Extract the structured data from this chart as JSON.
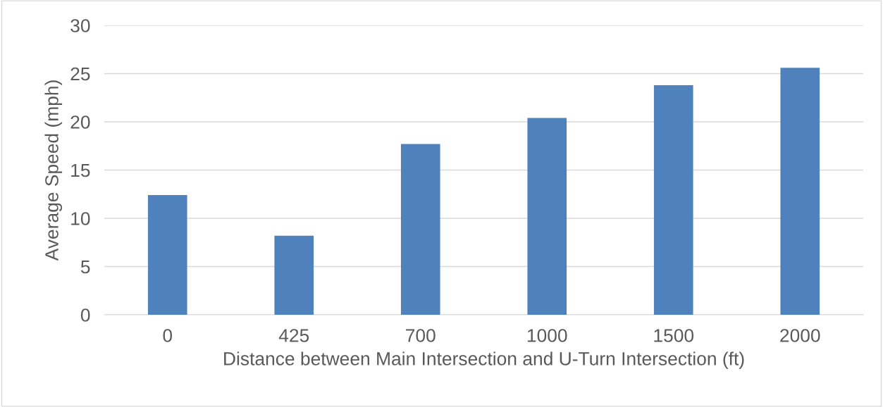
{
  "chart_data": {
    "type": "bar",
    "xlabel": "Distance between Main Intersection and U-Turn Intersection (ft)",
    "ylabel": "Average Speed (mph)",
    "categories": [
      "0",
      "425",
      "700",
      "1000",
      "1500",
      "2000"
    ],
    "values": [
      12.4,
      8.2,
      17.7,
      20.4,
      23.8,
      25.6
    ],
    "color": "#4f81bd",
    "ylim": [
      0,
      30
    ],
    "yticks": [
      0,
      5,
      10,
      15,
      20,
      25,
      30
    ],
    "grid": "y",
    "legend": false
  }
}
